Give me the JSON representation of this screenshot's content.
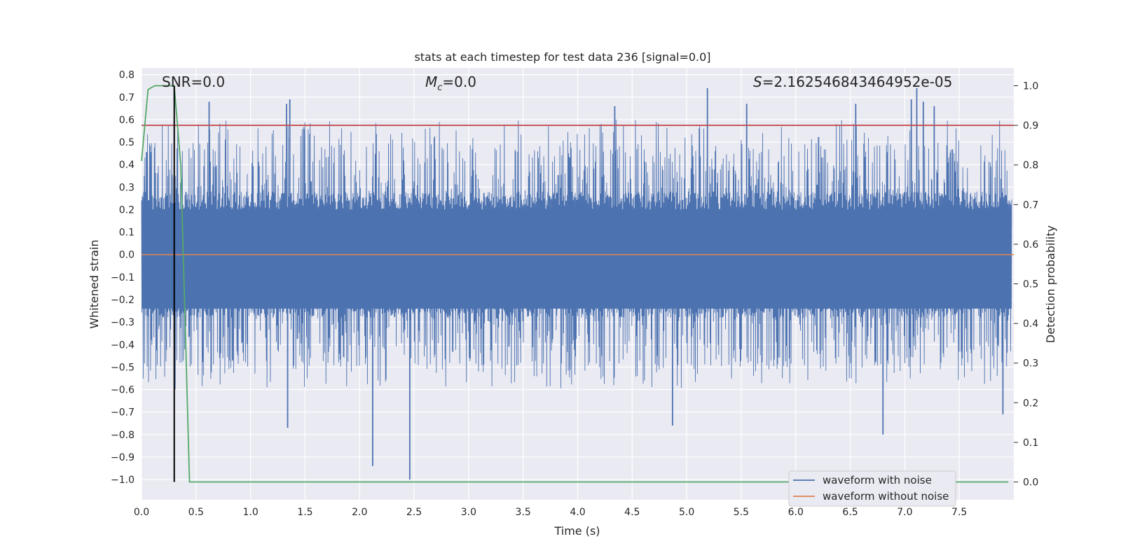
{
  "chart_data": {
    "type": "line",
    "title": "stats at each timestep for test data 236 [signal=0.0]",
    "xlabel": "Time (s)",
    "ylabel": "Whitened strain",
    "y2label": "Detection probability",
    "xlim": [
      0.0,
      8.0
    ],
    "ylim": [
      -1.09,
      0.83
    ],
    "y2lim": [
      -0.045,
      1.045
    ],
    "x_ticks": [
      "0.0",
      "0.5",
      "1.0",
      "1.5",
      "2.0",
      "2.5",
      "3.0",
      "3.5",
      "4.0",
      "4.5",
      "5.0",
      "5.5",
      "6.0",
      "6.5",
      "7.0",
      "7.5"
    ],
    "y_ticks": [
      "0.8",
      "0.7",
      "0.6",
      "0.5",
      "0.4",
      "0.3",
      "0.2",
      "0.1",
      "0.0",
      "−0.1",
      "−0.2",
      "−0.3",
      "−0.4",
      "−0.5",
      "−0.6",
      "−0.7",
      "−0.8",
      "−0.9",
      "−1.0"
    ],
    "y2_ticks": [
      "1.0",
      "0.9",
      "0.8",
      "0.7",
      "0.6",
      "0.5",
      "0.4",
      "0.3",
      "0.2",
      "0.1",
      "0.0"
    ],
    "annotations": {
      "snr": "SNR=0.0",
      "mc_symbol": "M",
      "mc_sub": "c",
      "mc_value": "=0.0",
      "s_symbol": "S",
      "s_value": "=2.162546843464952e-05"
    },
    "legend": {
      "placement": "lower-right",
      "entries": [
        "waveform with noise",
        "waveform without noise"
      ]
    },
    "series": [
      {
        "name": "waveform with noise",
        "axis": "left",
        "color": "#4c72b0",
        "description_values": {
          "envelope_typical": [
            -0.45,
            0.45
          ],
          "spikes_up": [
            [
              0.62,
              0.68
            ],
            [
              1.33,
              0.67
            ],
            [
              1.36,
              0.69
            ],
            [
              4.34,
              0.66
            ],
            [
              5.19,
              0.74
            ],
            [
              5.55,
              0.67
            ],
            [
              6.55,
              0.67
            ],
            [
              7.06,
              0.69
            ],
            [
              7.11,
              0.74
            ],
            [
              7.17,
              0.68
            ],
            [
              7.27,
              0.66
            ]
          ],
          "spikes_down": [
            [
              1.34,
              -0.77
            ],
            [
              2.12,
              -0.94
            ],
            [
              2.46,
              -1.0
            ],
            [
              4.87,
              -0.76
            ],
            [
              6.8,
              -0.8
            ],
            [
              7.9,
              -0.71
            ]
          ]
        }
      },
      {
        "name": "waveform without noise",
        "axis": "left",
        "color": "#dd8452",
        "x": [
          0.0,
          8.0
        ],
        "y": [
          0.0,
          0.0
        ]
      },
      {
        "name": "detection probability",
        "axis": "right",
        "color": "#55a868",
        "x": [
          0.0,
          0.06,
          0.12,
          0.2,
          0.3,
          0.36,
          0.4,
          0.44,
          7.95
        ],
        "y": [
          0.81,
          0.99,
          1.0,
          1.0,
          1.0,
          0.8,
          0.4,
          0.0,
          0.0
        ]
      }
    ],
    "threshold": {
      "axis": "right",
      "value": 0.9,
      "color": "#c44e52"
    },
    "marker_line": {
      "x": 0.3,
      "color": "#000000"
    }
  }
}
